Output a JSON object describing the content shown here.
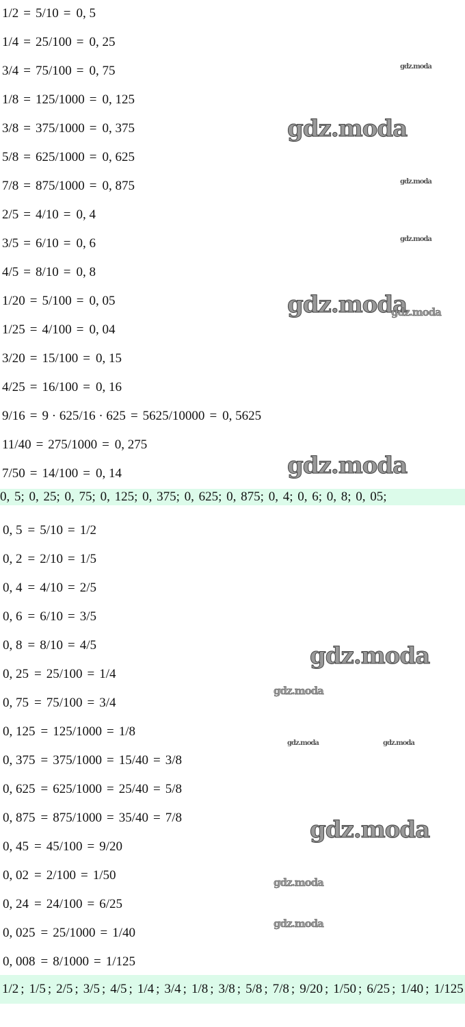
{
  "highlight_color": "#dcfbea",
  "section1": [
    [
      "1/2",
      "=",
      "5/10",
      "=",
      "0, 5"
    ],
    [
      "1/4",
      "=",
      "25/100",
      "=",
      "0, 25"
    ],
    [
      "3/4",
      "=",
      "75/100",
      "=",
      "0, 75"
    ],
    [
      "1/8",
      "=",
      "125/1000",
      "=",
      "0, 125"
    ],
    [
      "3/8",
      "=",
      "375/1000",
      "=",
      "0, 375"
    ],
    [
      "5/8",
      "=",
      "625/1000",
      "=",
      "0, 625"
    ],
    [
      "7/8",
      "=",
      "875/1000",
      "=",
      "0, 875"
    ],
    [
      "2/5",
      "=",
      "4/10",
      "=",
      "0, 4"
    ],
    [
      "3/5",
      "=",
      "6/10",
      "=",
      "0, 6"
    ],
    [
      "4/5",
      "=",
      "8/10",
      "=",
      "0, 8"
    ],
    [
      "1/20",
      "=",
      "5/100",
      "=",
      "0, 05"
    ],
    [
      "1/25",
      "=",
      "4/100",
      "=",
      "0, 04"
    ],
    [
      "3/20",
      "=",
      "15/100",
      "=",
      "0, 15"
    ],
    [
      "4/25",
      "=",
      "16/100",
      "=",
      "0, 16"
    ],
    [
      "9/16",
      "=",
      "9 · 625/16 · 625",
      "=",
      "5625/10000",
      "=",
      "0, 5625"
    ],
    [
      "11/40",
      "=",
      "275/1000",
      "=",
      "0, 275"
    ],
    [
      "7/50",
      "=",
      "14/100",
      "=",
      "0, 14"
    ]
  ],
  "answer1": "0, 5;  0, 25;  0, 75;  0, 125;  0, 375;  0, 625;  0, 875;  0, 4;  0, 6;  0, 8;  0, 05;",
  "section2": [
    [
      "0, 5",
      "=",
      "5/10",
      "=",
      "1/2"
    ],
    [
      "0, 2",
      "=",
      "2/10",
      "=",
      "1/5"
    ],
    [
      "0, 4",
      "=",
      "4/10",
      "=",
      "2/5"
    ],
    [
      "0, 6",
      "=",
      "6/10",
      "=",
      "3/5"
    ],
    [
      "0, 8",
      "=",
      "8/10",
      "=",
      "4/5"
    ],
    [
      "0, 25",
      "=",
      "25/100",
      "=",
      "1/4"
    ],
    [
      "0, 75",
      "=",
      "75/100",
      "=",
      "3/4"
    ],
    [
      "0, 125",
      "=",
      "125/1000",
      "=",
      "1/8"
    ],
    [
      "0, 375",
      "=",
      "375/1000",
      "=",
      "15/40",
      "=",
      "3/8"
    ],
    [
      "0, 625",
      "=",
      "625/1000",
      "=",
      "25/40",
      "=",
      "5/8"
    ],
    [
      "0, 875",
      "=",
      "875/1000",
      "=",
      "35/40",
      "=",
      "7/8"
    ],
    [
      "0, 45",
      "=",
      "45/100",
      "=",
      "9/20"
    ],
    [
      "0, 02",
      "=",
      "2/100",
      "=",
      "1/50"
    ],
    [
      "0, 24",
      "=",
      "24/100",
      "=",
      "6/25"
    ],
    [
      "0, 025",
      "=",
      "25/1000",
      "=",
      "1/40"
    ],
    [
      "0, 008",
      "=",
      "8/1000",
      "=",
      "1/125"
    ]
  ],
  "answer2": [
    "1/2",
    ";",
    "1/5",
    ";",
    "2/5",
    ";",
    "3/5",
    ";",
    "4/5",
    ";",
    "1/4",
    ";",
    "3/4",
    ";",
    "1/8",
    ";",
    "3/8",
    ";",
    "5/8",
    ";",
    "7/8",
    ";",
    "9/20",
    ";",
    "1/50",
    ";",
    "6/25",
    ";",
    "1/40",
    ";",
    "1/125"
  ],
  "watermark": "gdz.moda"
}
